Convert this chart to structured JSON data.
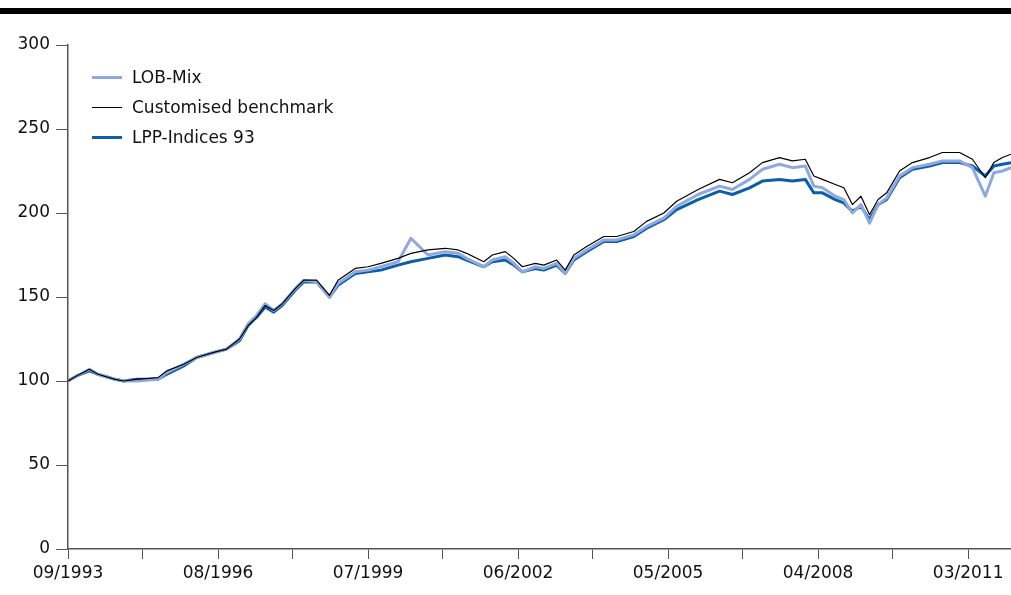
{
  "chart_data": {
    "type": "line",
    "legend": "top left",
    "grid": false,
    "marker": "none",
    "line_style": "solid",
    "x": [
      "1993-09",
      "1993-11",
      "1994-02",
      "1994-04",
      "1994-08",
      "1994-10",
      "1995-01",
      "1995-06",
      "1995-08",
      "1995-12",
      "1996-03",
      "1996-07",
      "1996-10",
      "1997-01",
      "1997-03",
      "1997-05",
      "1997-07",
      "1997-09",
      "1997-11",
      "1998-02",
      "1998-04",
      "1998-07",
      "1998-10",
      "1998-12",
      "1999-04",
      "1999-07",
      "1999-10",
      "2000-02",
      "2000-05",
      "2000-09",
      "2001-01",
      "2001-04",
      "2001-06",
      "2001-10",
      "2001-12",
      "2002-03",
      "2002-05",
      "2002-07",
      "2002-10",
      "2002-12",
      "2003-03",
      "2003-05",
      "2003-07",
      "2003-10",
      "2004-02",
      "2004-05",
      "2004-09",
      "2004-12",
      "2005-04",
      "2005-07",
      "2005-12",
      "2006-05",
      "2006-08",
      "2006-12",
      "2007-03",
      "2007-07",
      "2007-10",
      "2008-01",
      "2008-03",
      "2008-05",
      "2008-08",
      "2008-10",
      "2008-12",
      "2009-02",
      "2009-04",
      "2009-06",
      "2009-08",
      "2009-11",
      "2010-02",
      "2010-06",
      "2010-09",
      "2011-01",
      "2011-04",
      "2011-07",
      "2011-09",
      "2011-11",
      "2012-01"
    ],
    "xlim": [
      "1993-09",
      "2012-01"
    ],
    "xticks": [
      {
        "value": "1993-09",
        "label": "09/1993"
      },
      {
        "value": "1995-02-15",
        "label": null
      },
      {
        "value": "1996-08",
        "label": "08/1996"
      },
      {
        "value": "1998-01-15",
        "label": null
      },
      {
        "value": "1999-07",
        "label": "07/1999"
      },
      {
        "value": "2000-12-15",
        "label": null
      },
      {
        "value": "2002-06",
        "label": "06/2002"
      },
      {
        "value": "2003-11-15",
        "label": null
      },
      {
        "value": "2005-05",
        "label": "05/2005"
      },
      {
        "value": "2006-10-15",
        "label": null
      },
      {
        "value": "2008-04",
        "label": "04/2008"
      },
      {
        "value": "2009-09-15",
        "label": null
      },
      {
        "value": "2011-03",
        "label": "03/2011"
      }
    ],
    "ylim": [
      0,
      300
    ],
    "yticks": [
      0,
      50,
      100,
      150,
      200,
      250,
      300
    ],
    "series": [
      {
        "name": "LOB-Mix",
        "color": "#8fa9dc",
        "values": [
          100,
          103,
          107,
          104,
          101,
          100,
          100,
          101,
          105,
          110,
          114,
          117,
          119,
          125,
          134,
          139,
          146,
          142,
          146,
          155,
          160,
          159,
          150,
          158,
          165,
          166,
          168,
          171,
          185,
          175,
          177,
          176,
          173,
          168,
          172,
          174,
          170,
          165,
          168,
          167,
          170,
          164,
          173,
          178,
          184,
          184,
          187,
          192,
          197,
          204,
          211,
          216,
          214,
          220,
          226,
          229,
          227,
          228,
          216,
          215,
          210,
          208,
          200,
          205,
          194,
          205,
          209,
          222,
          227,
          229,
          231,
          231,
          227,
          210,
          224,
          225,
          227
        ]
      },
      {
        "name": "Customised benchmark",
        "color": "#000000",
        "values": [
          100,
          103,
          107,
          104,
          101,
          100,
          101,
          102,
          106,
          110,
          114,
          117,
          119,
          125,
          133,
          138,
          145,
          142,
          146,
          155,
          160,
          160,
          151,
          160,
          167,
          168,
          170,
          173,
          176,
          178,
          179,
          178,
          176,
          171,
          175,
          177,
          173,
          168,
          170,
          169,
          172,
          166,
          175,
          180,
          186,
          186,
          189,
          195,
          200,
          207,
          214,
          220,
          218,
          224,
          230,
          233,
          231,
          232,
          222,
          220,
          217,
          215,
          205,
          210,
          199,
          208,
          212,
          225,
          230,
          233,
          236,
          236,
          232,
          221,
          230,
          233,
          235
        ]
      },
      {
        "name": "LPP-Indices 93",
        "color": "#0b5fa8",
        "values": [
          100,
          103,
          106,
          104,
          101,
          100,
          101,
          101,
          104,
          109,
          114,
          117,
          119,
          124,
          133,
          138,
          144,
          141,
          145,
          154,
          159,
          159,
          150,
          157,
          164,
          165,
          166,
          169,
          171,
          173,
          175,
          174,
          172,
          168,
          171,
          172,
          169,
          165,
          167,
          166,
          169,
          164,
          172,
          177,
          183,
          183,
          186,
          191,
          196,
          202,
          208,
          213,
          211,
          215,
          219,
          220,
          219,
          220,
          212,
          212,
          208,
          206,
          201,
          204,
          196,
          205,
          208,
          221,
          226,
          228,
          230,
          230,
          228,
          222,
          228,
          229,
          230
        ]
      }
    ]
  }
}
